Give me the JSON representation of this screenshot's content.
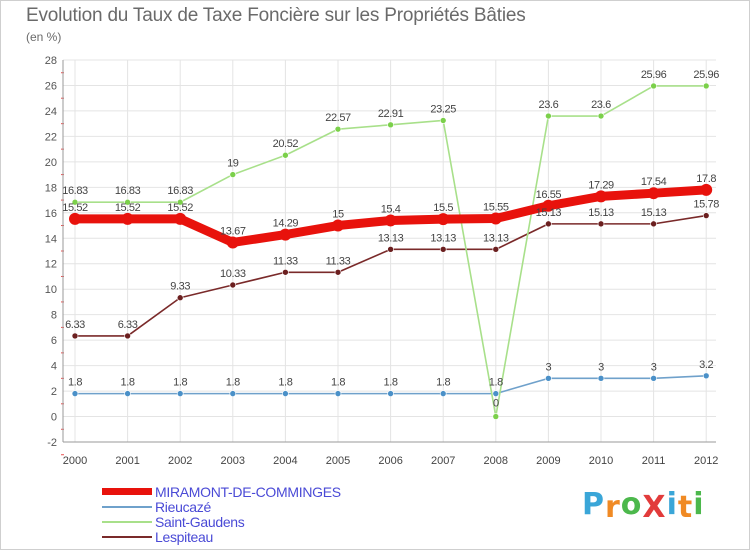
{
  "header": {
    "title": "Evolution du Taux de Taxe Foncière sur les Propriétés Bâties",
    "subtitle": "(en %)"
  },
  "brand": {
    "text": "ProXiti",
    "letters": [
      "P",
      "r",
      "o",
      "X",
      "i",
      "t",
      "i"
    ],
    "colors": [
      "#3aa6d8",
      "#f08a24",
      "#4cb84c",
      "#e23b3b",
      "#3aa6d8",
      "#f08a24",
      "#4cb84c"
    ]
  },
  "chart_data": {
    "type": "line",
    "title": "Evolution du Taux de Taxe Foncière sur les Propriétés Bâties",
    "ylabel": "(en %)",
    "xlabel": "",
    "x": [
      "2000",
      "2001",
      "2002",
      "2003",
      "2004",
      "2005",
      "2006",
      "2007",
      "2008",
      "2009",
      "2010",
      "2011",
      "2012"
    ],
    "ylim": [
      -2,
      28
    ],
    "yticks": [
      -2,
      0,
      2,
      4,
      6,
      8,
      10,
      12,
      14,
      16,
      18,
      20,
      22,
      24,
      26,
      28
    ],
    "grid": true,
    "legend_position": "bottom-left",
    "series": [
      {
        "name": "MIRAMONT-DE-COMMINGES",
        "color": "#e8120c",
        "emphasis": true,
        "values": [
          15.52,
          15.52,
          15.52,
          13.67,
          14.29,
          15,
          15.4,
          15.5,
          15.55,
          16.55,
          17.29,
          17.54,
          17.8
        ],
        "labels": [
          "15.52",
          "15.52",
          "15.52",
          "13.67",
          "14.29",
          "15",
          "15.4",
          "15.5",
          "15.55",
          "16.55",
          "17.29",
          "17.54",
          "17.8"
        ]
      },
      {
        "name": "Rieucazé",
        "color": "#6fa1cb",
        "emphasis": false,
        "values": [
          1.8,
          1.8,
          1.8,
          1.8,
          1.8,
          1.8,
          1.8,
          1.8,
          1.8,
          3,
          3,
          3,
          3.2
        ],
        "labels": [
          "1.8",
          "1.8",
          "1.8",
          "1.8",
          "1.8",
          "1.8",
          "1.8",
          "1.8",
          "1.8",
          "3",
          "3",
          "3",
          "3.2"
        ]
      },
      {
        "name": "Saint-Gaudens",
        "color": "#a8e08a",
        "emphasis": false,
        "values": [
          16.83,
          16.83,
          16.83,
          19,
          20.52,
          22.57,
          22.91,
          23.25,
          0,
          23.6,
          23.6,
          25.96,
          25.96
        ],
        "labels": [
          "16.83",
          "16.83",
          "16.83",
          "19",
          "20.52",
          "22.57",
          "22.91",
          "23.25",
          "0",
          "23.6",
          "23.6",
          "25.96",
          "25.96"
        ]
      },
      {
        "name": "Lespiteau",
        "color": "#7a2a2a",
        "emphasis": false,
        "values": [
          6.33,
          6.33,
          9.33,
          10.33,
          11.33,
          11.33,
          13.13,
          13.13,
          13.13,
          15.13,
          15.13,
          15.13,
          15.78
        ],
        "labels": [
          "6.33",
          "6.33",
          "9.33",
          "10.33",
          "11.33",
          "11.33",
          "13.13",
          "13.13",
          "13.13",
          "15.13",
          "15.13",
          "15.13",
          "15.78"
        ]
      }
    ]
  }
}
